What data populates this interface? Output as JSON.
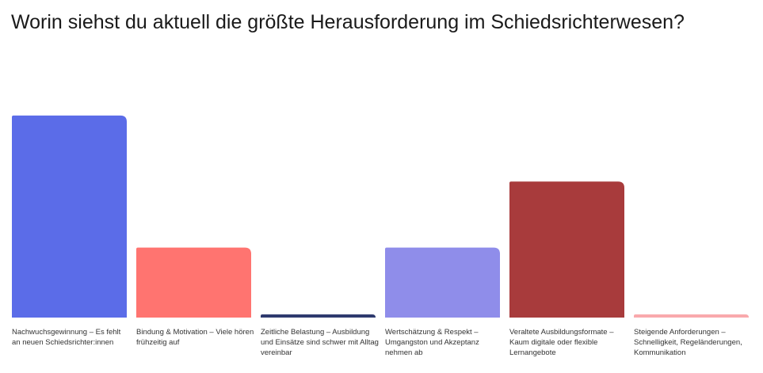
{
  "title": "Worin siehst du aktuell die größte Herausforderung im Schiedsrichterwesen?",
  "chart_data": {
    "type": "bar",
    "title": "Worin siehst du aktuell die größte Herausforderung im Schiedsrichterwesen?",
    "xlabel": "",
    "ylabel": "",
    "grid": false,
    "legend": "none",
    "categories": [
      "Nachwuchsgewinnung – Es fehlt an neuen Schiedsrichter:innen",
      "Bindung & Motivation – Viele hören frühzeitig auf",
      "Zeitliche Belastung – Ausbildung und Einsätze sind schwer mit Alltag vereinbar",
      "Wertschätzung & Respekt – Umgangston und Akzeptanz nehmen ab",
      "Veraltete Ausbildungsformate – Kaum digitale oder flexible Lernangebote",
      "Steigende Anforderungen – Schnelligkeit, Regeländerungen, Kommunikation"
    ],
    "values": [
      26,
      9,
      0.4,
      9,
      17.5,
      0.4
    ],
    "ylim": [
      0,
      27
    ],
    "colors": [
      "#5B6CE8",
      "#FF7470",
      "#2E3A6E",
      "#8F8DEA",
      "#A83B3C",
      "#F9A9AC"
    ]
  }
}
